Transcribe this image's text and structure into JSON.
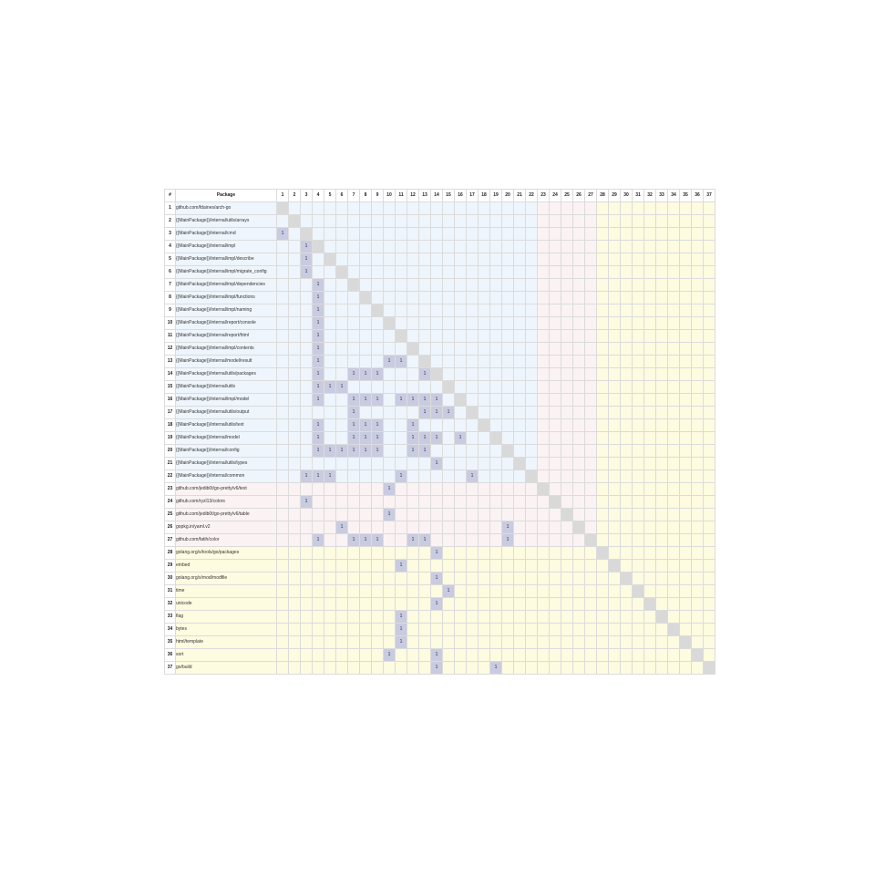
{
  "header": {
    "index_label": "#",
    "package_label": "Package"
  },
  "dep_label": "1",
  "group_colors": {
    "main": "#eef5fc",
    "thirdparty": "#faf2f3",
    "stdlib": "#fdfbe0",
    "diagonal": "#d9d9d9",
    "dependency": "#c9cbe0"
  },
  "rows": [
    {
      "num": "1",
      "name": "github.com/fdaines/arch-go",
      "group": 1,
      "deps": []
    },
    {
      "num": "2",
      "name": "{{MainPackage}}/internal/utils/arrays",
      "group": 1,
      "deps": []
    },
    {
      "num": "3",
      "name": "{{MainPackage}}/internal/cmd",
      "group": 1,
      "deps": [
        1
      ]
    },
    {
      "num": "4",
      "name": "{{MainPackage}}/internal/impl",
      "group": 1,
      "deps": [
        3
      ]
    },
    {
      "num": "5",
      "name": "{{MainPackage}}/internal/impl/describe",
      "group": 1,
      "deps": [
        3
      ]
    },
    {
      "num": "6",
      "name": "{{MainPackage}}/internal/impl/migrate_config",
      "group": 1,
      "deps": [
        3
      ]
    },
    {
      "num": "7",
      "name": "{{MainPackage}}/internal/impl/dependencies",
      "group": 1,
      "deps": [
        4
      ]
    },
    {
      "num": "8",
      "name": "{{MainPackage}}/internal/impl/functions",
      "group": 1,
      "deps": [
        4
      ]
    },
    {
      "num": "9",
      "name": "{{MainPackage}}/internal/impl/naming",
      "group": 1,
      "deps": [
        4
      ]
    },
    {
      "num": "10",
      "name": "{{MainPackage}}/internal/report/console",
      "group": 1,
      "deps": [
        4
      ]
    },
    {
      "num": "11",
      "name": "{{MainPackage}}/internal/report/html",
      "group": 1,
      "deps": [
        4
      ]
    },
    {
      "num": "12",
      "name": "{{MainPackage}}/internal/impl/contents",
      "group": 1,
      "deps": [
        4
      ]
    },
    {
      "num": "13",
      "name": "{{MainPackage}}/internal/model/result",
      "group": 1,
      "deps": [
        4,
        10,
        11
      ]
    },
    {
      "num": "14",
      "name": "{{MainPackage}}/internal/utils/packages",
      "group": 1,
      "deps": [
        4,
        7,
        8,
        9,
        13
      ]
    },
    {
      "num": "15",
      "name": "{{MainPackage}}/internal/utils",
      "group": 1,
      "deps": [
        4,
        5,
        6
      ]
    },
    {
      "num": "16",
      "name": "{{MainPackage}}/internal/impl/model",
      "group": 1,
      "deps": [
        4,
        7,
        8,
        9,
        11,
        12,
        13,
        14
      ]
    },
    {
      "num": "17",
      "name": "{{MainPackage}}/internal/utils/output",
      "group": 1,
      "deps": [
        7,
        13,
        14,
        15
      ]
    },
    {
      "num": "18",
      "name": "{{MainPackage}}/internal/utils/text",
      "group": 1,
      "deps": [
        4,
        7,
        8,
        9,
        12
      ]
    },
    {
      "num": "19",
      "name": "{{MainPackage}}/internal/model",
      "group": 1,
      "deps": [
        4,
        7,
        8,
        9,
        12,
        13,
        14,
        16
      ]
    },
    {
      "num": "20",
      "name": "{{MainPackage}}/internal/config",
      "group": 1,
      "deps": [
        4,
        5,
        6,
        7,
        8,
        9,
        12,
        13
      ]
    },
    {
      "num": "21",
      "name": "{{MainPackage}}/internal/utils/types",
      "group": 1,
      "deps": [
        14
      ]
    },
    {
      "num": "22",
      "name": "{{MainPackage}}/internal/common",
      "group": 1,
      "deps": [
        3,
        4,
        5,
        11,
        17
      ]
    },
    {
      "num": "23",
      "name": "github.com/jedib0t/go-pretty/v6/text",
      "group": 2,
      "deps": [
        10
      ]
    },
    {
      "num": "24",
      "name": "github.com/ryzl13/colors",
      "group": 2,
      "deps": [
        3
      ]
    },
    {
      "num": "25",
      "name": "github.com/jedib0t/go-pretty/v6/table",
      "group": 2,
      "deps": [
        10
      ]
    },
    {
      "num": "26",
      "name": "gopkg.in/yaml.v2",
      "group": 2,
      "deps": [
        6,
        20
      ]
    },
    {
      "num": "27",
      "name": "github.com/fatih/color",
      "group": 2,
      "deps": [
        4,
        7,
        8,
        9,
        12,
        13,
        20
      ]
    },
    {
      "num": "28",
      "name": "golang.org/x/tools/go/packages",
      "group": 3,
      "deps": [
        14
      ]
    },
    {
      "num": "29",
      "name": "embed",
      "group": 3,
      "deps": [
        11
      ]
    },
    {
      "num": "30",
      "name": "golang.org/x/mod/modfile",
      "group": 3,
      "deps": [
        14
      ]
    },
    {
      "num": "31",
      "name": "time",
      "group": 3,
      "deps": [
        15
      ]
    },
    {
      "num": "32",
      "name": "unicode",
      "group": 3,
      "deps": [
        14
      ]
    },
    {
      "num": "33",
      "name": "flag",
      "group": 3,
      "deps": [
        11
      ]
    },
    {
      "num": "34",
      "name": "bytes",
      "group": 3,
      "deps": [
        11
      ]
    },
    {
      "num": "35",
      "name": "html/template",
      "group": 3,
      "deps": [
        11
      ]
    },
    {
      "num": "36",
      "name": "sort",
      "group": 3,
      "deps": [
        10,
        14
      ]
    },
    {
      "num": "37",
      "name": "go/build",
      "group": 3,
      "deps": [
        14,
        19
      ]
    }
  ]
}
